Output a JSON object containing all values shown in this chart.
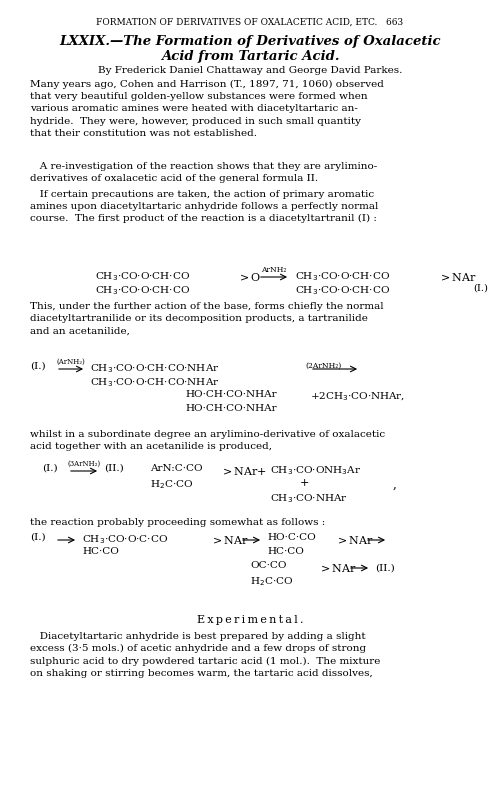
{
  "bg_color": "#ffffff",
  "fig_width": 5.0,
  "fig_height": 8.1,
  "dpi": 100,
  "header": "FORMATION OF DERIVATIVES OF OXALACETIC ACID, ETC.   663",
  "title_line1": "LXXIX.—The Formation of Derivatives of Oxalacetic",
  "title_line2": "Acid from Tartaric Acid.",
  "author": "By Frederick Daniel Chattaway and George David Parkes.",
  "p1": "Many years ago, Cohen and Harrison (T., 1897, 71, 1060) observed\nthat very beautiful golden-yellow substances were formed when\nvarious aromatic amines were heated with diacetyltartaric an-\nhydride.  They were, however, produced in such small quantity\nthat their constitution was not established.",
  "p2": "   A re-investigation of the reaction shows that they are arylimino-\nderivatives of oxalacetic acid of the general formula II.",
  "p3": "   If certain precautions are taken, the action of primary aromatic\namines upon diacetyltartaric anhydride follows a perfectly normal\ncourse.  The first product of the reaction is a diacetyltartranil (I) :",
  "p4": "This, under the further action of the base, forms chiefly the normal\ndiacetyltartranilide or its decomposition products, a tartranilide\nand an acetanilide,",
  "p5": "whilst in a subordinate degree an arylimino-derivative of oxalacetic\nacid together with an acetanilide is produced,",
  "p6": "the reaction probably proceeding somewhat as follows :",
  "exp_header": "Experimental.",
  "exp_text": "   Diacetyltartaric anhydride is best prepared by adding a slight\nexcess (3·5 mols.) of acetic anhydride and a few drops of strong\nsulphuric acid to dry powdered tartaric acid (1 mol.).  The mixture\non shaking or stirring becomes warm, the tartaric acid dissolves,"
}
